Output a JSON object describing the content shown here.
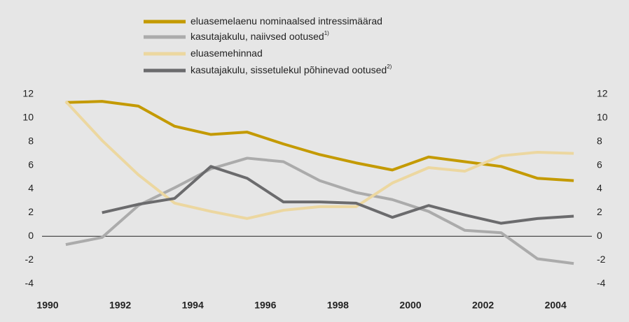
{
  "chart_data": {
    "type": "line",
    "x": [
      1990.5,
      1991.5,
      1992.5,
      1993.5,
      1994.5,
      1995.5,
      1996.5,
      1997.5,
      1998.5,
      1999.5,
      2000.5,
      2001.5,
      2002.5,
      2003.5,
      2004.5
    ],
    "series": [
      {
        "name": "eluasemelaenu nominaalsed intressimäärad",
        "color": "#c49a00",
        "values": [
          11.3,
          11.4,
          11.0,
          9.3,
          8.6,
          8.8,
          7.8,
          6.9,
          6.2,
          5.6,
          6.7,
          6.3,
          5.9,
          4.9,
          4.7
        ]
      },
      {
        "name": "kasutajakulu, naiivsed ootused",
        "footnote_mark": "1)",
        "color": "#ababab",
        "values": [
          -0.7,
          -0.1,
          2.6,
          4.1,
          5.7,
          6.6,
          6.3,
          4.7,
          3.7,
          3.1,
          2.1,
          0.5,
          0.3,
          -1.9,
          -2.3
        ]
      },
      {
        "name": "eluasemehinnad",
        "color": "#ecd7a0",
        "values": [
          11.4,
          8.1,
          5.2,
          2.8,
          2.1,
          1.5,
          2.2,
          2.5,
          2.5,
          4.5,
          5.8,
          5.5,
          6.8,
          7.1,
          7.0
        ]
      },
      {
        "name": "kasutajakulu, sissetulekul põhinevad ootused",
        "footnote_mark": "2)",
        "color": "#6b6b6d",
        "values": [
          null,
          2.0,
          2.7,
          3.2,
          5.9,
          4.9,
          2.9,
          2.9,
          2.8,
          1.6,
          2.6,
          1.8,
          1.1,
          1.5,
          1.7
        ]
      }
    ],
    "xlim": [
      1990,
      2005
    ],
    "xticks": [
      1990,
      1992,
      1994,
      1996,
      1998,
      2000,
      2002,
      2004
    ],
    "ylim": [
      -5,
      13
    ],
    "yticks": [
      -4,
      -2,
      0,
      2,
      4,
      6,
      8,
      10,
      12
    ],
    "y2lim": [
      -5,
      13
    ],
    "y2ticks": [
      -4,
      -2,
      0,
      2,
      4,
      6,
      8,
      10,
      12
    ],
    "zero_line": true
  }
}
